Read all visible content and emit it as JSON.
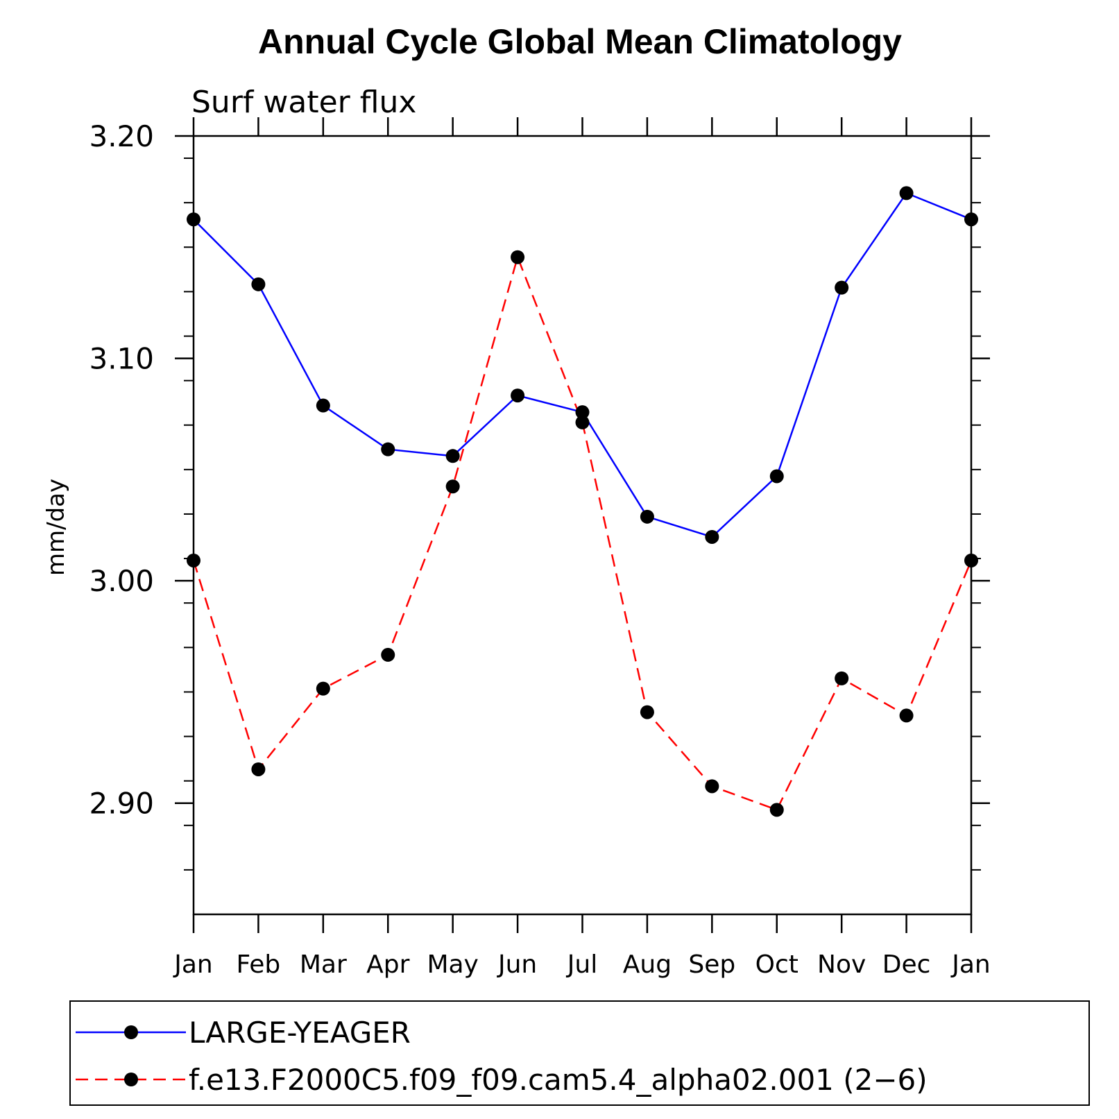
{
  "chart_data": {
    "type": "line",
    "title": "Annual Cycle Global Mean Climatology",
    "subtitle": "Surf water flux",
    "xlabel": "",
    "ylabel": "mm/day",
    "categories": [
      "Jan",
      "Feb",
      "Mar",
      "Apr",
      "May",
      "Jun",
      "Jul",
      "Aug",
      "Sep",
      "Oct",
      "Nov",
      "Dec",
      "Jan"
    ],
    "ylim": [
      2.85,
      3.2
    ],
    "yticks": [
      "2.90",
      "3.00",
      "3.10",
      "3.20"
    ],
    "ytick_values": [
      2.9,
      3.0,
      3.1,
      3.2
    ],
    "minor_tick_step": 0.02,
    "grid": false,
    "legend_position": "bottom",
    "series": [
      {
        "name": "LARGE-YEAGER",
        "color": "#0000ff",
        "dash": "solid",
        "values": [
          3.1625,
          3.1333,
          3.0788,
          3.0591,
          3.0561,
          3.0833,
          3.0758,
          3.0288,
          3.0197,
          3.047,
          3.1318,
          3.1743,
          3.1625
        ]
      },
      {
        "name": "f.e13.F2000C5.f09_f09.cam5.4_alpha02.001 (2−6)",
        "color": "#ff0000",
        "dash": "dashed",
        "values": [
          3.0091,
          2.9152,
          2.9515,
          2.9667,
          3.0424,
          3.1455,
          3.0712,
          2.9409,
          2.9076,
          2.897,
          2.9561,
          2.9394,
          3.0091
        ]
      }
    ]
  }
}
